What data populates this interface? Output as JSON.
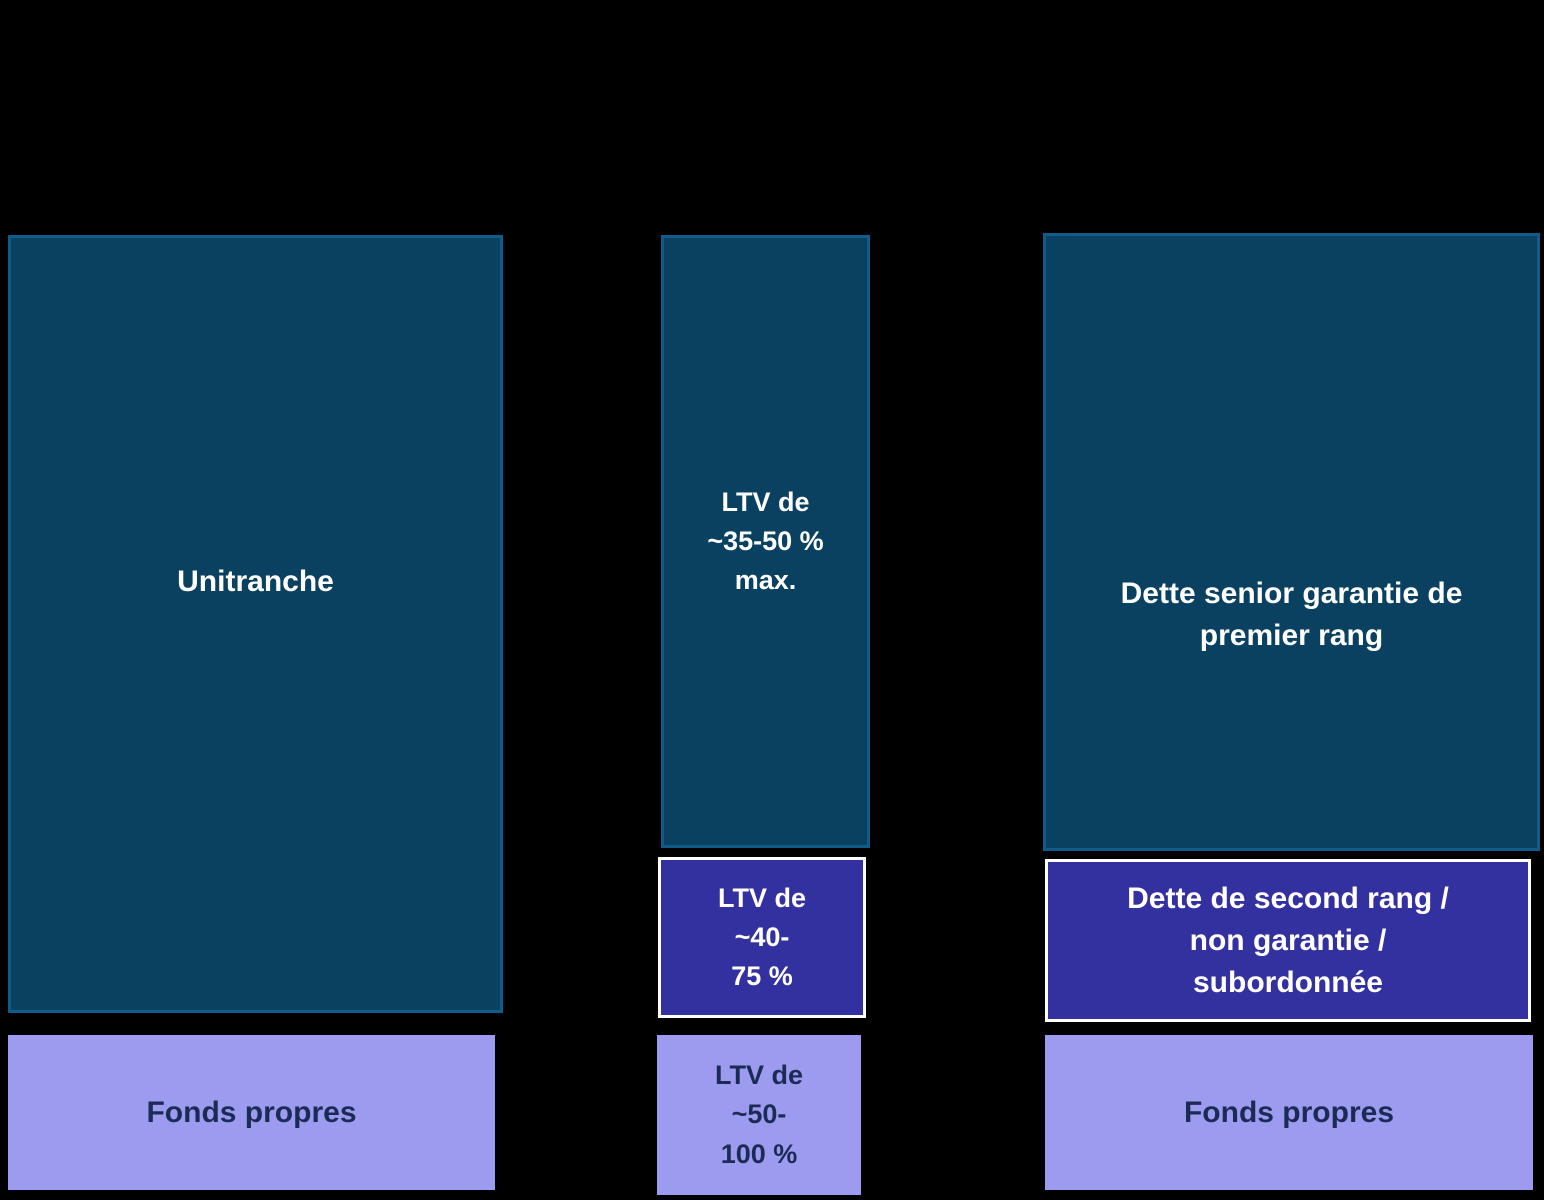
{
  "diagram": {
    "unitranche": {
      "debt_label": "Unitranche",
      "equity_label": "Fonds propres"
    },
    "ltv": {
      "senior_lines": [
        "LTV de",
        "~35-50 %",
        "max."
      ],
      "junior_lines": [
        "LTV de",
        "~40-",
        "75 %"
      ],
      "equity_lines": [
        "LTV de",
        "~50-",
        "100 %"
      ]
    },
    "classic": {
      "senior_lines": [
        "Dette senior garantie de",
        "premier rang"
      ],
      "junior_lines": [
        "Dette de second rang /",
        "non garantie /",
        "subordonnée"
      ],
      "equity_label": "Fonds propres"
    }
  },
  "colors": {
    "background": "#000000",
    "senior_debt_fill": "#0a4161",
    "senior_debt_border": "#0f5c8a",
    "junior_debt_fill": "#33309f",
    "junior_debt_border": "#ffffff",
    "equity_fill": "#9c9bf0",
    "text_light": "#ffffff",
    "text_dark": "#1c2b55"
  }
}
